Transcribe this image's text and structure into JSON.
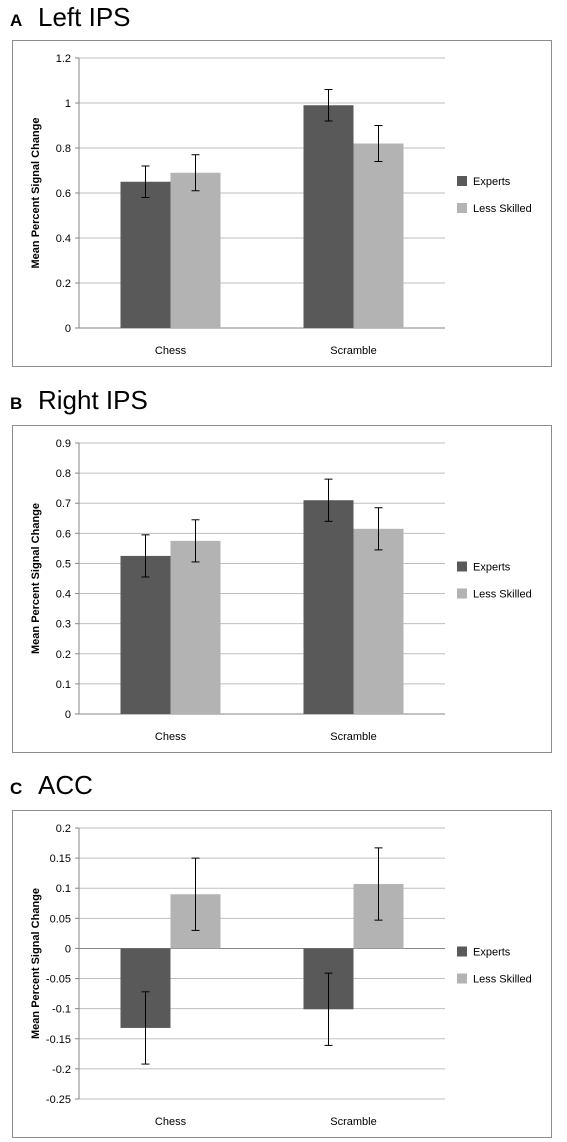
{
  "colors": {
    "experts": "#595959",
    "less_skilled": "#b3b3b3",
    "grid": "#bfbfbf",
    "axis": "#868686"
  },
  "chart_data": [
    {
      "type": "bar",
      "panel_letter": "A",
      "title": "Left IPS",
      "ylabel": "Mean Percent Signal Change",
      "categories": [
        "Chess",
        "Scramble"
      ],
      "ylim": [
        0,
        1.2
      ],
      "ytick_step": 0.2,
      "ytick_labels": [
        "0",
        "0.2",
        "0.4",
        "0.6",
        "0.8",
        "1",
        "1.2"
      ],
      "series": [
        {
          "name": "Experts",
          "values": [
            0.65,
            0.99
          ],
          "errors": [
            0.07,
            0.07
          ]
        },
        {
          "name": "Less Skilled",
          "values": [
            0.69,
            0.82
          ],
          "errors": [
            0.08,
            0.08
          ]
        }
      ],
      "grid": true,
      "legend": "right"
    },
    {
      "type": "bar",
      "panel_letter": "B",
      "title": "Right IPS",
      "ylabel": "Mean Percent Signal Change",
      "categories": [
        "Chess",
        "Scramble"
      ],
      "ylim": [
        0,
        0.9
      ],
      "ytick_step": 0.1,
      "ytick_labels": [
        "0",
        "0.1",
        "0.2",
        "0.3",
        "0.4",
        "0.5",
        "0.6",
        "0.7",
        "0.8",
        "0.9"
      ],
      "series": [
        {
          "name": "Experts",
          "values": [
            0.525,
            0.71
          ],
          "errors": [
            0.07,
            0.07
          ]
        },
        {
          "name": "Less Skilled",
          "values": [
            0.575,
            0.615
          ],
          "errors": [
            0.07,
            0.07
          ]
        }
      ],
      "grid": true,
      "legend": "right"
    },
    {
      "type": "bar",
      "panel_letter": "C",
      "title": "ACC",
      "ylabel": "Mean Percent Signal Change",
      "categories": [
        "Chess",
        "Scramble"
      ],
      "ylim": [
        -0.25,
        0.2
      ],
      "ytick_step": 0.05,
      "ytick_labels": [
        "-0.25",
        "-0.2",
        "-0.15",
        "-0.1",
        "-0.05",
        "0",
        "0.05",
        "0.1",
        "0.15",
        "0.2"
      ],
      "series": [
        {
          "name": "Experts",
          "values": [
            -0.132,
            -0.101
          ],
          "errors": [
            0.06,
            0.06
          ]
        },
        {
          "name": "Less Skilled",
          "values": [
            0.09,
            0.107
          ],
          "errors": [
            0.06,
            0.06
          ]
        }
      ],
      "grid": true,
      "legend": "right"
    }
  ]
}
